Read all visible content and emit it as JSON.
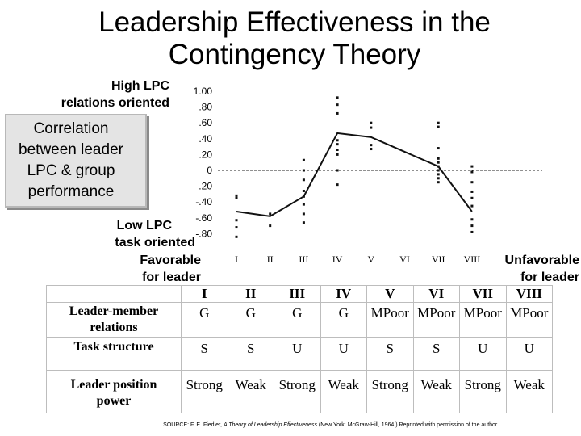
{
  "title": {
    "line1": "Leadership Effectiveness in the",
    "line2": "Contingency Theory"
  },
  "axis_notes": {
    "high_line1": "High LPC",
    "high_line2": "relations oriented",
    "low_line1": "Low LPC",
    "low_line2": "task oriented",
    "favorable_line1": "Favorable",
    "favorable_line2": "for leader",
    "unfavorable_line1": "Unfavorable",
    "unfavorable_line2": "for leader"
  },
  "correlation_label": {
    "line1": "Correlation",
    "line2": "between leader",
    "line3": "LPC & group",
    "line4": "performance"
  },
  "chart_data": {
    "type": "line",
    "x_categories": [
      "I",
      "II",
      "III",
      "IV",
      "V",
      "VI",
      "VII",
      "VIII"
    ],
    "y_ticks": [
      "1.00",
      ".80",
      ".60",
      ".40",
      ".20",
      "0",
      "-.20",
      "-.40",
      "-.60",
      "-.80"
    ],
    "y_tick_values": [
      1.0,
      0.8,
      0.6,
      0.4,
      0.2,
      0,
      -0.2,
      -0.4,
      -0.6,
      -0.8
    ],
    "ylim": [
      -0.9,
      1.05
    ],
    "reference_line_y": 0,
    "median_line": [
      {
        "x": "I",
        "y": -0.52
      },
      {
        "x": "II",
        "y": -0.58
      },
      {
        "x": "III",
        "y": -0.33
      },
      {
        "x": "IV",
        "y": 0.47
      },
      {
        "x": "V",
        "y": 0.42
      },
      {
        "x": "VII",
        "y": 0.05
      },
      {
        "x": "VIII",
        "y": -0.52
      }
    ],
    "scatter_points": [
      {
        "x": "I",
        "y": -0.32
      },
      {
        "x": "I",
        "y": -0.35
      },
      {
        "x": "I",
        "y": -0.63
      },
      {
        "x": "I",
        "y": -0.72
      },
      {
        "x": "I",
        "y": -0.84
      },
      {
        "x": "II",
        "y": -0.55
      },
      {
        "x": "II",
        "y": -0.7
      },
      {
        "x": "III",
        "y": 0.13
      },
      {
        "x": "III",
        "y": 0.0
      },
      {
        "x": "III",
        "y": -0.12
      },
      {
        "x": "III",
        "y": -0.26
      },
      {
        "x": "III",
        "y": -0.33
      },
      {
        "x": "III",
        "y": -0.43
      },
      {
        "x": "III",
        "y": -0.55
      },
      {
        "x": "III",
        "y": -0.66
      },
      {
        "x": "IV",
        "y": 0.92
      },
      {
        "x": "IV",
        "y": 0.83
      },
      {
        "x": "IV",
        "y": 0.72
      },
      {
        "x": "IV",
        "y": 0.38
      },
      {
        "x": "IV",
        "y": 0.33
      },
      {
        "x": "IV",
        "y": 0.26
      },
      {
        "x": "IV",
        "y": 0.2
      },
      {
        "x": "IV",
        "y": 0.0
      },
      {
        "x": "IV",
        "y": -0.18
      },
      {
        "x": "V",
        "y": 0.6
      },
      {
        "x": "V",
        "y": 0.54
      },
      {
        "x": "V",
        "y": 0.32
      },
      {
        "x": "V",
        "y": 0.27
      },
      {
        "x": "VII",
        "y": 0.6
      },
      {
        "x": "VII",
        "y": 0.55
      },
      {
        "x": "VII",
        "y": 0.28
      },
      {
        "x": "VII",
        "y": 0.15
      },
      {
        "x": "VII",
        "y": 0.1
      },
      {
        "x": "VII",
        "y": 0.05
      },
      {
        "x": "VII",
        "y": 0.0
      },
      {
        "x": "VII",
        "y": -0.05
      },
      {
        "x": "VII",
        "y": -0.1
      },
      {
        "x": "VII",
        "y": -0.15
      },
      {
        "x": "VIII",
        "y": 0.05
      },
      {
        "x": "VIII",
        "y": -0.02
      },
      {
        "x": "VIII",
        "y": -0.15
      },
      {
        "x": "VIII",
        "y": -0.27
      },
      {
        "x": "VIII",
        "y": -0.35
      },
      {
        "x": "VIII",
        "y": -0.45
      },
      {
        "x": "VIII",
        "y": -0.62
      },
      {
        "x": "VIII",
        "y": -0.7
      },
      {
        "x": "VIII",
        "y": -0.78
      }
    ]
  },
  "table": {
    "headers": [
      "I",
      "II",
      "III",
      "IV",
      "V",
      "VI",
      "VII",
      "VIII"
    ],
    "rows": [
      {
        "label_line1": "Leader-member",
        "label_line2": "relations",
        "values": [
          "G",
          "G",
          "G",
          "G",
          "MPoor",
          "MPoor",
          "MPoor",
          "MPoor"
        ]
      },
      {
        "label_line1": "Task structure",
        "label_line2": "",
        "values": [
          "S",
          "S",
          "U",
          "U",
          "S",
          "S",
          "U",
          "U"
        ]
      },
      {
        "label_line1": "Leader position",
        "label_line2": "power",
        "values": [
          "Strong",
          "Weak",
          "Strong",
          "Weak",
          "Strong",
          "Weak",
          "Strong",
          "Weak"
        ]
      }
    ]
  },
  "source": {
    "prefix": "SOURCE: F. E. Fiedler, ",
    "book": "A Theory of Leadership Effectiveness",
    "suffix": " (New York: McGraw-Hill, 1964.) Reprinted with permission of the author."
  }
}
